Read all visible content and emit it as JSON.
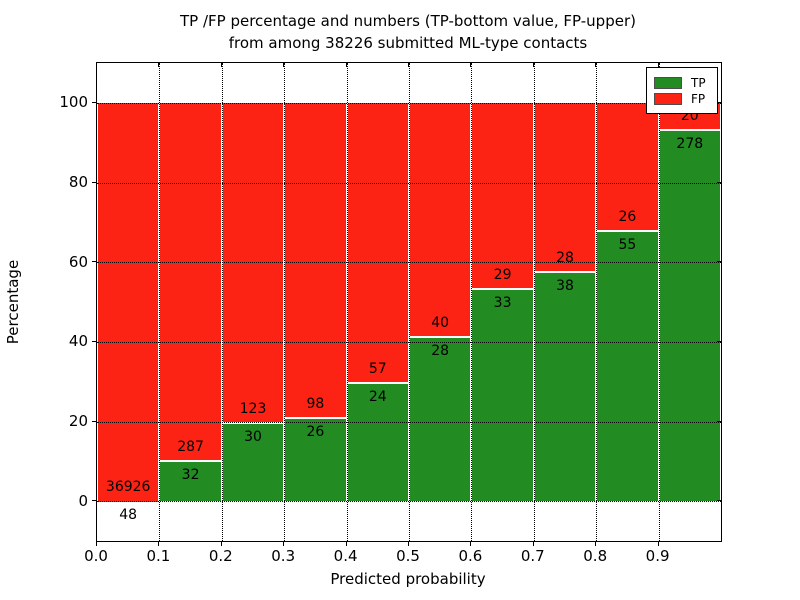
{
  "title": {
    "line1": "TP /FP percentage and numbers (TP-bottom value, FP-upper)",
    "line2": "from among 38226 submitted ML-type contacts"
  },
  "chart_data": {
    "type": "bar",
    "stacked": true,
    "normalized": "percent",
    "total_contacts": 38226,
    "categories": [
      "0.0-0.1",
      "0.1-0.2",
      "0.2-0.3",
      "0.3-0.4",
      "0.4-0.5",
      "0.5-0.6",
      "0.6-0.7",
      "0.7-0.8",
      "0.8-0.9",
      "0.9-1.0"
    ],
    "series": [
      {
        "name": "TP",
        "color": "#228b22",
        "values": [
          48,
          32,
          30,
          26,
          24,
          28,
          33,
          38,
          55,
          278
        ]
      },
      {
        "name": "FP",
        "color": "#fc2314",
        "values": [
          36926,
          287,
          123,
          98,
          57,
          40,
          29,
          28,
          26,
          20
        ]
      }
    ],
    "bar_label_note": "TP count shown below segment boundary, FP count shown above it",
    "xlabel": "Predicted probability",
    "ylabel": "Percentage",
    "xlim": [
      0.0,
      1.0
    ],
    "ylim": [
      -10,
      110
    ],
    "xticks": [
      "0.0",
      "0.1",
      "0.2",
      "0.3",
      "0.4",
      "0.5",
      "0.6",
      "0.7",
      "0.8",
      "0.9"
    ],
    "yticks": [
      "0",
      "20",
      "40",
      "60",
      "80",
      "100"
    ],
    "grid": "dotted black, on",
    "legend": {
      "position": "upper right",
      "entries": [
        {
          "label": "TP",
          "color": "#228b22"
        },
        {
          "label": "FP",
          "color": "#fc2314"
        }
      ]
    },
    "colors": {
      "tp_green": "#228b22",
      "fp_red": "#fc2314",
      "background": "#ffffff",
      "axis": "#000000"
    }
  }
}
